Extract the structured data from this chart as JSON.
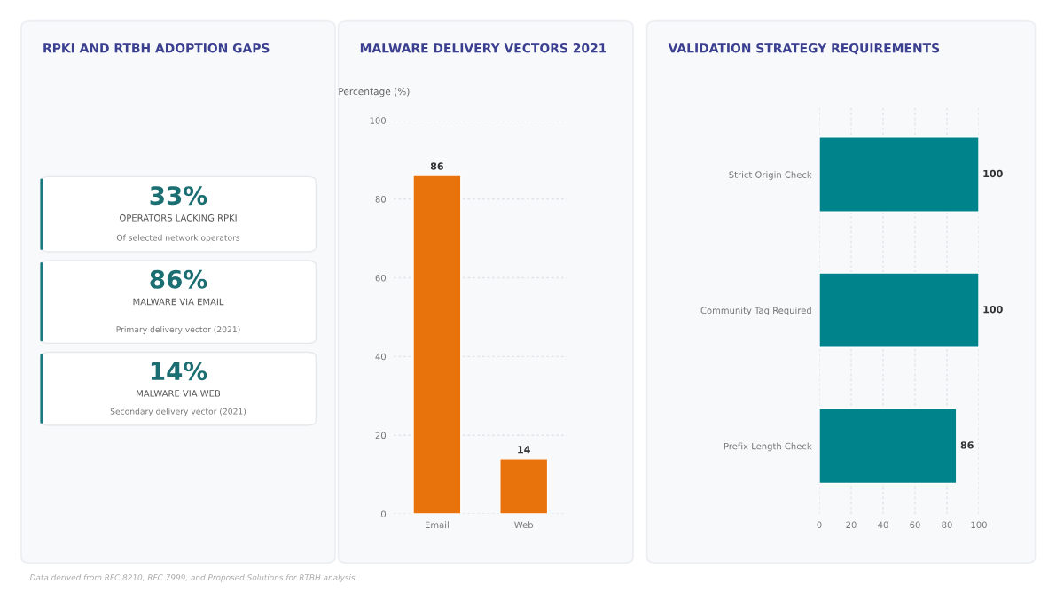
{
  "chart_data": [
    {
      "type": "other",
      "title": "RPKI AND RTBH ADOPTION GAPS",
      "annotations": [
        "33%",
        "OPERATORS LACKING RPKI",
        "Of selected network operators",
        "86%",
        "MALWARE VIA EMAIL",
        "Primary delivery vector (2021)",
        "14%",
        "MALWARE VIA WEB",
        "Secondary delivery vector (2021)"
      ]
    },
    {
      "type": "bar",
      "title": "MALWARE DELIVERY VECTORS 2021",
      "ylabel": "Percentage (%)",
      "categories": [
        "Email",
        "Web"
      ],
      "values": [
        86,
        14
      ],
      "color": "#e8720c",
      "ylim": [
        0,
        100
      ],
      "yticks": [
        0,
        20,
        40,
        60,
        80,
        100
      ],
      "grid": "y",
      "data_labels": true
    },
    {
      "type": "bar",
      "orientation": "horizontal",
      "title": "VALIDATION STRATEGY REQUIREMENTS",
      "categories": [
        "Strict Origin Check",
        "Community Tag Required",
        "Prefix Length Check"
      ],
      "values": [
        100,
        100,
        86
      ],
      "color": "#00838a",
      "xlim": [
        0,
        100
      ],
      "xticks": [
        0,
        20,
        40,
        60,
        80,
        100
      ],
      "grid": "x",
      "data_labels": true,
      "annotations": [
        "Data derived from RFC 8210, RFC 7999, and Proposed Solutions for RTBH analysis."
      ]
    }
  ]
}
